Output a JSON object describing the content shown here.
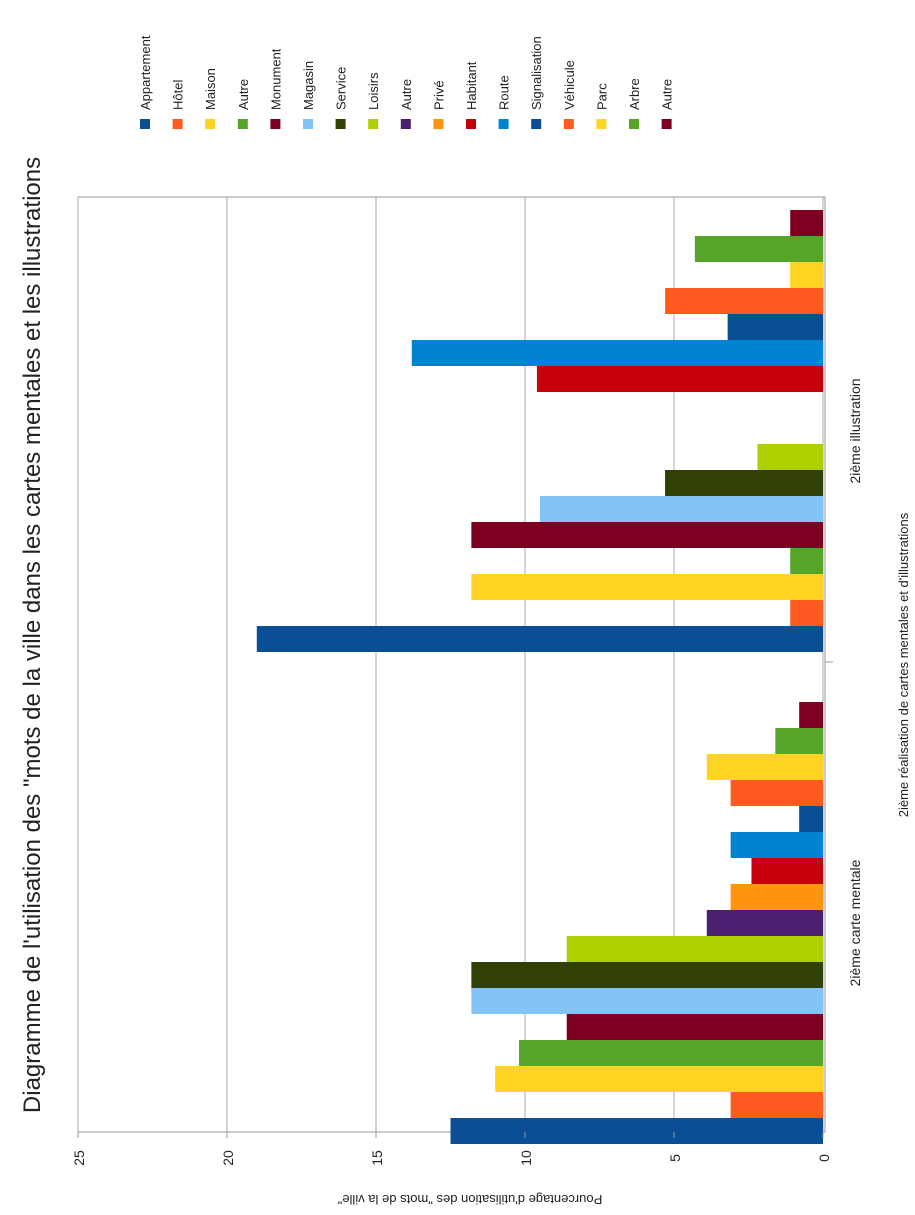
{
  "chart_data": {
    "type": "bar",
    "orientation": "vertical (image rotated 90° clockwise)",
    "title": "Diagramme de l'utilisation des \"mots de la ville dans les cartes mentales et les illustrations",
    "xlabel": "2ième réalisation de cartes mentales et d'illustrations",
    "ylabel": "Pourcentage d'utilisation des \"mots de la ville\"",
    "ylim": [
      0,
      25
    ],
    "yticks": [
      "0",
      "5",
      "10",
      "15",
      "20",
      "25"
    ],
    "grid": true,
    "legend_position": "right",
    "groups": [
      {
        "name": "2ième carte mentale",
        "bars": [
          {
            "label": "Appartement",
            "value": 12.5,
            "color": "#0a4f96"
          },
          {
            "label": "Hôtel",
            "value": 3.1,
            "color": "#ff5a1f"
          },
          {
            "label": "Maison",
            "value": 11.0,
            "color": "#ffd321"
          },
          {
            "label": "Autre",
            "value": 10.2,
            "color": "#57a528"
          },
          {
            "label": "Monument",
            "value": 8.6,
            "color": "#7e0021"
          },
          {
            "label": "Magasin",
            "value": 11.8,
            "color": "#84c4f4"
          },
          {
            "label": "Service",
            "value": 11.8,
            "color": "#314004"
          },
          {
            "label": "Loisirs",
            "value": 8.6,
            "color": "#aecf00"
          },
          {
            "label": "Autre",
            "value": 3.9,
            "color": "#4b1f6f"
          },
          {
            "label": "Privé",
            "value": 3.1,
            "color": "#ff950e"
          },
          {
            "label": "Habitant",
            "value": 2.4,
            "color": "#c5000b"
          },
          {
            "label": "Route",
            "value": 3.1,
            "color": "#0084d1"
          },
          {
            "label": "Signalisation",
            "value": 0.8,
            "color": "#0a4f96"
          },
          {
            "label": "Véhicule",
            "value": 3.1,
            "color": "#ff5a1f"
          },
          {
            "label": "Parc",
            "value": 3.9,
            "color": "#ffd321"
          },
          {
            "label": "Arbre",
            "value": 1.6,
            "color": "#57a528"
          },
          {
            "label": "Autre",
            "value": 0.8,
            "color": "#7e0021"
          }
        ]
      },
      {
        "name": "2ième illustration",
        "bars": [
          {
            "label": "Appartement",
            "value": 19.0,
            "color": "#0a4f96"
          },
          {
            "label": "Hôtel",
            "value": 1.1,
            "color": "#ff5a1f"
          },
          {
            "label": "Maison",
            "value": 11.8,
            "color": "#ffd321"
          },
          {
            "label": "Autre",
            "value": 1.1,
            "color": "#57a528"
          },
          {
            "label": "Monument",
            "value": 11.8,
            "color": "#7e0021"
          },
          {
            "label": "Magasin",
            "value": 9.5,
            "color": "#84c4f4"
          },
          {
            "label": "Service",
            "value": 5.3,
            "color": "#314004"
          },
          {
            "label": "Loisirs",
            "value": 2.2,
            "color": "#aecf00"
          },
          {
            "label": "Autre",
            "value": 0,
            "color": "#4b1f6f"
          },
          {
            "label": "Privé",
            "value": 0,
            "color": "#ff950e"
          },
          {
            "label": "Habitant",
            "value": 9.6,
            "color": "#c5000b"
          },
          {
            "label": "Route",
            "value": 13.8,
            "color": "#0084d1"
          },
          {
            "label": "Signalisation",
            "value": 3.2,
            "color": "#0a4f96"
          },
          {
            "label": "Véhicule",
            "value": 5.3,
            "color": "#ff5a1f"
          },
          {
            "label": "Parc",
            "value": 1.1,
            "color": "#ffd321"
          },
          {
            "label": "Arbre",
            "value": 4.3,
            "color": "#57a528"
          },
          {
            "label": "Autre",
            "value": 1.1,
            "color": "#7e0021"
          }
        ]
      }
    ],
    "legend": [
      {
        "label": "Appartement",
        "color": "#0a4f96"
      },
      {
        "label": "Hôtel",
        "color": "#ff5a1f"
      },
      {
        "label": "Maison",
        "color": "#ffd321"
      },
      {
        "label": "Autre",
        "color": "#57a528"
      },
      {
        "label": "Monument",
        "color": "#7e0021"
      },
      {
        "label": "Magasin",
        "color": "#84c4f4"
      },
      {
        "label": "Service",
        "color": "#314004"
      },
      {
        "label": "Loisirs",
        "color": "#aecf00"
      },
      {
        "label": "Autre",
        "color": "#4b1f6f"
      },
      {
        "label": "Privé",
        "color": "#ff950e"
      },
      {
        "label": "Habitant",
        "color": "#c5000b"
      },
      {
        "label": "Route",
        "color": "#0084d1"
      },
      {
        "label": "Signalisation",
        "color": "#0a4f96"
      },
      {
        "label": "Véhicule",
        "color": "#ff5a1f"
      },
      {
        "label": "Parc",
        "color": "#ffd321"
      },
      {
        "label": "Arbre",
        "color": "#57a528"
      },
      {
        "label": "Autre",
        "color": "#7e0021"
      }
    ]
  }
}
